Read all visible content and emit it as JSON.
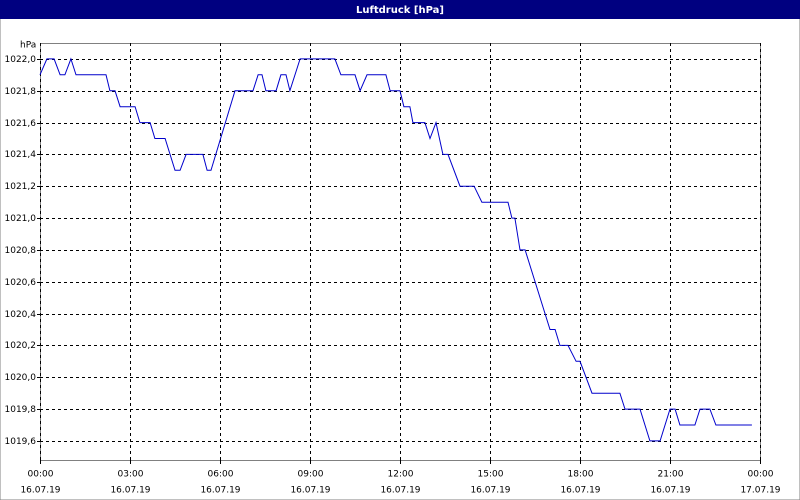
{
  "window_title": "Luftdruck [hPa]",
  "chart_data": {
    "type": "line",
    "y_unit": "hPa",
    "x": [
      0,
      0.23,
      0.47,
      0.67,
      0.83,
      1.03,
      1.2,
      2.2,
      2.33,
      2.5,
      2.67,
      3.17,
      3.33,
      3.67,
      3.83,
      4.17,
      4.5,
      4.67,
      4.87,
      5.43,
      5.57,
      5.7,
      6.5,
      7.1,
      7.27,
      7.4,
      7.53,
      7.87,
      8.03,
      8.2,
      8.33,
      8.67,
      9.83,
      10.03,
      10.5,
      10.67,
      10.9,
      11.53,
      11.67,
      12,
      12.13,
      12.33,
      12.43,
      12.83,
      13,
      13.2,
      13.43,
      13.6,
      14,
      14.47,
      14.73,
      15.6,
      15.73,
      15.83,
      16,
      16.17,
      17,
      17.17,
      17.33,
      17.6,
      17.87,
      18,
      18.4,
      19.33,
      19.5,
      20,
      20.33,
      20.67,
      21,
      21.17,
      21.33,
      21.83,
      22,
      22.33,
      22.53,
      23.73
    ],
    "series": [
      {
        "name": "Luftdruck",
        "color": "#0000cc",
        "values": [
          1021.9,
          1022.0,
          1022.0,
          1021.9,
          1021.9,
          1022.0,
          1021.9,
          1021.9,
          1021.8,
          1021.8,
          1021.7,
          1021.7,
          1021.6,
          1021.6,
          1021.5,
          1021.5,
          1021.3,
          1021.3,
          1021.4,
          1021.4,
          1021.3,
          1021.3,
          1021.8,
          1021.8,
          1021.9,
          1021.9,
          1021.8,
          1021.8,
          1021.9,
          1021.9,
          1021.8,
          1022.0,
          1022.0,
          1021.9,
          1021.9,
          1021.8,
          1021.9,
          1021.9,
          1021.8,
          1021.8,
          1021.7,
          1021.7,
          1021.6,
          1021.6,
          1021.5,
          1021.6,
          1021.4,
          1021.4,
          1021.2,
          1021.2,
          1021.1,
          1021.1,
          1021.0,
          1021.0,
          1020.8,
          1020.8,
          1020.3,
          1020.3,
          1020.2,
          1020.2,
          1020.1,
          1020.1,
          1019.9,
          1019.9,
          1019.8,
          1019.8,
          1019.6,
          1019.6,
          1019.8,
          1019.8,
          1019.7,
          1019.7,
          1019.8,
          1019.8,
          1019.7,
          1019.7
        ]
      }
    ],
    "xlim": [
      0,
      24
    ],
    "ylim": [
      1019.48,
      1022.1
    ],
    "xticks": [
      {
        "value": 0,
        "label": "00:00",
        "date": "16.07.19"
      },
      {
        "value": 3,
        "label": "03:00",
        "date": "16.07.19"
      },
      {
        "value": 6,
        "label": "06:00",
        "date": "16.07.19"
      },
      {
        "value": 9,
        "label": "09:00",
        "date": "16.07.19"
      },
      {
        "value": 12,
        "label": "12:00",
        "date": "16.07.19"
      },
      {
        "value": 15,
        "label": "15:00",
        "date": "16.07.19"
      },
      {
        "value": 18,
        "label": "18:00",
        "date": "16.07.19"
      },
      {
        "value": 21,
        "label": "21:00",
        "date": "16.07.19"
      },
      {
        "value": 24,
        "label": "00:00",
        "date": "17.07.19"
      }
    ],
    "yticks": [
      {
        "value": 1019.6,
        "label": "1019,6"
      },
      {
        "value": 1019.8,
        "label": "1019,8"
      },
      {
        "value": 1020.0,
        "label": "1020,0"
      },
      {
        "value": 1020.2,
        "label": "1020,2"
      },
      {
        "value": 1020.4,
        "label": "1020,4"
      },
      {
        "value": 1020.6,
        "label": "1020,6"
      },
      {
        "value": 1020.8,
        "label": "1020,8"
      },
      {
        "value": 1021.0,
        "label": "1021,0"
      },
      {
        "value": 1021.2,
        "label": "1021,2"
      },
      {
        "value": 1021.4,
        "label": "1021,4"
      },
      {
        "value": 1021.6,
        "label": "1021,6"
      },
      {
        "value": 1021.8,
        "label": "1021,8"
      },
      {
        "value": 1022.0,
        "label": "1022,0"
      }
    ],
    "grid": true
  }
}
